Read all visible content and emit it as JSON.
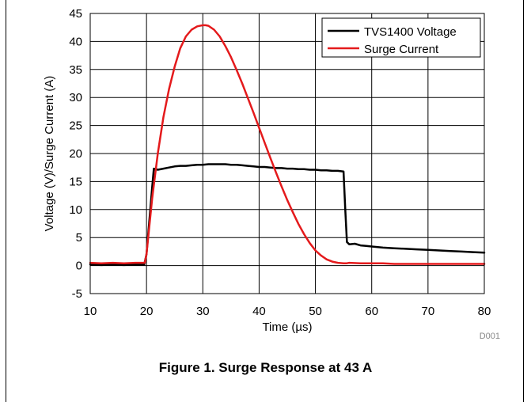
{
  "figure": {
    "caption": "Figure 1. Surge Response at 43 A",
    "code": "D001"
  },
  "chart_data": {
    "type": "line",
    "xlabel": "Time (µs)",
    "ylabel": "Voltage (V)/Surge Current (A)",
    "xlim": [
      10,
      80
    ],
    "ylim": [
      -5,
      45
    ],
    "xticks": [
      10,
      20,
      30,
      40,
      50,
      60,
      70,
      80
    ],
    "yticks": [
      -5,
      0,
      5,
      10,
      15,
      20,
      25,
      30,
      35,
      40,
      45
    ],
    "grid": true,
    "legend_position": "top-right",
    "series": [
      {
        "name": "TVS1400 Voltage",
        "color": "#000000",
        "x": [
          10,
          12,
          14,
          16,
          18,
          19.6,
          20,
          20.5,
          21,
          21.3,
          22,
          23,
          24,
          25,
          26,
          27,
          28,
          29,
          30,
          31,
          32,
          33,
          34,
          35,
          36,
          37,
          38,
          39,
          40,
          41,
          42,
          43,
          44,
          45,
          46,
          47,
          48,
          49,
          50,
          51,
          52,
          53,
          54,
          55,
          55.3,
          55.6,
          56,
          57,
          58,
          59,
          60,
          62,
          64,
          66,
          68,
          70,
          72,
          74,
          76,
          78,
          80
        ],
        "y": [
          0.2,
          0.1,
          0.2,
          0.1,
          0.2,
          0.2,
          2,
          8,
          14,
          17.3,
          17.1,
          17.3,
          17.5,
          17.7,
          17.8,
          17.8,
          17.9,
          18,
          18,
          18.1,
          18.1,
          18.1,
          18.1,
          18,
          18,
          17.9,
          17.8,
          17.7,
          17.6,
          17.6,
          17.5,
          17.4,
          17.4,
          17.3,
          17.3,
          17.2,
          17.2,
          17.1,
          17.1,
          17,
          17,
          16.9,
          16.9,
          16.8,
          10,
          4.2,
          3.8,
          3.9,
          3.6,
          3.5,
          3.4,
          3.2,
          3.1,
          3,
          2.9,
          2.8,
          2.7,
          2.6,
          2.5,
          2.4,
          2.3
        ]
      },
      {
        "name": "Surge Current",
        "color": "#e41a1c",
        "x": [
          10,
          12,
          14,
          16,
          18,
          19.7,
          20,
          21,
          22,
          23,
          24,
          25,
          26,
          27,
          28,
          29,
          30,
          30.5,
          31,
          32,
          33,
          34,
          35,
          36,
          37,
          38,
          39,
          40,
          41,
          42,
          43,
          44,
          45,
          46,
          47,
          48,
          49,
          50,
          51,
          52,
          53,
          54,
          55,
          55.5,
          56,
          58,
          60,
          62,
          64,
          66,
          68,
          70,
          72,
          74,
          76,
          78,
          80
        ],
        "y": [
          0.5,
          0.4,
          0.5,
          0.4,
          0.5,
          0.5,
          2,
          12,
          20,
          26.5,
          31.5,
          35.5,
          38.8,
          40.9,
          42.1,
          42.7,
          42.9,
          42.9,
          42.8,
          42.1,
          40.9,
          39.2,
          37.2,
          34.9,
          32.5,
          29.9,
          27.3,
          24.6,
          21.9,
          19.2,
          16.6,
          14.1,
          11.7,
          9.5,
          7.4,
          5.6,
          4,
          2.7,
          1.8,
          1.1,
          0.7,
          0.5,
          0.4,
          0.4,
          0.5,
          0.4,
          0.4,
          0.4,
          0.3,
          0.3,
          0.3,
          0.3,
          0.3,
          0.3,
          0.3,
          0.3,
          0.3
        ]
      }
    ]
  }
}
